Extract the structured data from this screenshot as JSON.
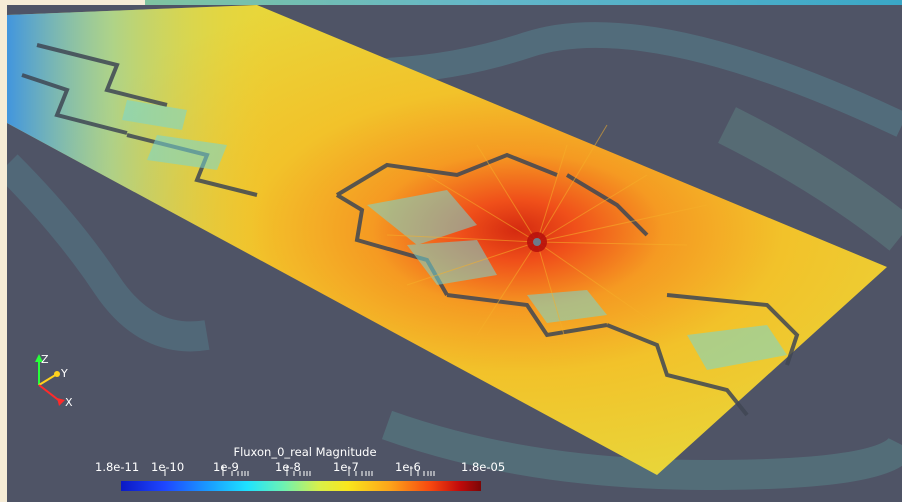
{
  "scene": {
    "colors": {
      "background": "#4f5466",
      "plate_low": "#f0c82a",
      "plate_mid": "#f4a81e",
      "plate_high": "#e63b14",
      "field_line_cool": "#72e0d6",
      "pad": "#76d7d2",
      "slot": "#3f4754"
    }
  },
  "axes": {
    "z_label": "Z",
    "y_label": "Y",
    "x_label": "X",
    "colors": {
      "z": "#27ff3a",
      "y": "#ffd21e",
      "x": "#ff2a2a"
    }
  },
  "colorbar": {
    "title": "Fluxon_0_real Magnitude",
    "ticks": [
      "1.8e-11",
      "1e-10",
      "1e-9",
      "1e-8",
      "1e-7",
      "1e-6",
      "1.8e-05"
    ]
  }
}
